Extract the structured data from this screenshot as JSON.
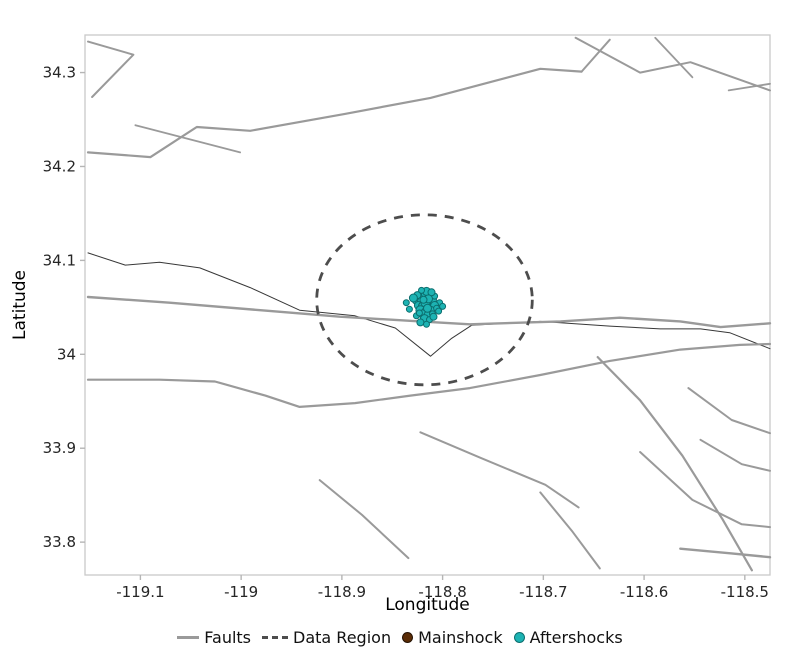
{
  "figure": {
    "title": ""
  },
  "legend": {
    "items": [
      {
        "label": "Faults",
        "type": "line",
        "color": "#9a9a9a"
      },
      {
        "label": "Data Region",
        "type": "dashed",
        "color": "#4d4d4d"
      },
      {
        "label": "Mainshock",
        "type": "point",
        "color": "#5a2c06",
        "edge": "#241103"
      },
      {
        "label": "Aftershocks",
        "type": "point",
        "color": "#1db3b3",
        "edge": "#0b6e6e"
      }
    ]
  },
  "chart_data": {
    "type": "scatter",
    "title": "",
    "xlabel": "Longitude",
    "ylabel": "Latitude",
    "xlim": [
      -119.155,
      -118.475
    ],
    "ylim": [
      33.765,
      34.34
    ],
    "x_ticks": [
      -119.1,
      -119.0,
      -118.9,
      -118.8,
      -118.7,
      -118.6,
      -118.5
    ],
    "x_tick_labels": [
      "-119.1",
      "-119",
      "-118.9",
      "-118.8",
      "-118.7",
      "-118.6",
      "-118.5"
    ],
    "y_ticks": [
      33.8,
      33.9,
      34.0,
      34.1,
      34.2,
      34.3
    ],
    "y_tick_labels": [
      "33.8",
      "33.9",
      "34",
      "34.1",
      "34.2",
      "34.3"
    ],
    "grid": false,
    "legend_position": "bottom",
    "colors": {
      "fault": "#9a9a9a",
      "fault_dark": "#383838",
      "data_region": "#4d4d4d",
      "mainshock": "#5a2c06",
      "mainshock_edge": "#241103",
      "aftershock": "#1db3b3",
      "aftershock_edge": "#0b6e6e",
      "panel_border": "#c9c9c9",
      "tick": "#b5b5b5",
      "tick_label": "#262626"
    },
    "data_region": {
      "center": [
        -118.818,
        34.058
      ],
      "rx": 0.107,
      "ry": 0.0905
    },
    "mainshock": {
      "lon": -118.818,
      "lat": 34.053
    },
    "aftershocks": [
      [
        -118.822,
        34.061,
        4
      ],
      [
        -118.818,
        34.064,
        3
      ],
      [
        -118.813,
        34.06,
        4.5
      ],
      [
        -118.827,
        34.057,
        3
      ],
      [
        -118.82,
        34.056,
        5
      ],
      [
        -118.815,
        34.056,
        3.5
      ],
      [
        -118.81,
        34.058,
        4
      ],
      [
        -118.803,
        34.055,
        3
      ],
      [
        -118.824,
        34.052,
        4
      ],
      [
        -118.819,
        34.051,
        5
      ],
      [
        -118.814,
        34.051,
        3
      ],
      [
        -118.808,
        34.052,
        4
      ],
      [
        -118.833,
        34.048,
        3
      ],
      [
        -118.822,
        34.047,
        4.5
      ],
      [
        -118.817,
        34.047,
        3
      ],
      [
        -118.812,
        34.047,
        4
      ],
      [
        -118.806,
        34.049,
        3
      ],
      [
        -118.82,
        34.043,
        4
      ],
      [
        -118.815,
        34.042,
        3.5
      ],
      [
        -118.81,
        34.043,
        3
      ],
      [
        -118.826,
        34.041,
        3
      ],
      [
        -118.818,
        34.038,
        4
      ],
      [
        -118.813,
        34.037,
        3
      ],
      [
        -118.822,
        34.034,
        3.5
      ],
      [
        -118.816,
        34.032,
        3
      ],
      [
        -118.836,
        34.055,
        3
      ],
      [
        -118.8,
        34.051,
        3
      ],
      [
        -118.825,
        34.063,
        3.5
      ],
      [
        -118.808,
        34.062,
        3
      ],
      [
        -118.816,
        34.067,
        4
      ],
      [
        -118.821,
        34.068,
        3
      ],
      [
        -118.811,
        34.066,
        3.5
      ],
      [
        -118.829,
        34.06,
        4
      ],
      [
        -118.804,
        34.046,
        3
      ],
      [
        -118.817,
        34.055,
        4.5
      ],
      [
        -118.814,
        34.059,
        4
      ],
      [
        -118.819,
        34.058,
        3.5
      ],
      [
        -118.823,
        34.044,
        3
      ],
      [
        -118.809,
        34.04,
        3.5
      ],
      [
        -118.815,
        34.049,
        4
      ]
    ],
    "faults": [
      {
        "width": 2,
        "points": [
          [
            -119.152,
            34.333
          ],
          [
            -119.107,
            34.319
          ],
          [
            -119.148,
            34.274
          ]
        ]
      },
      {
        "width": 2.2,
        "points": [
          [
            -119.152,
            34.215
          ],
          [
            -119.09,
            34.21
          ],
          [
            -119.044,
            34.242
          ],
          [
            -118.991,
            34.238
          ],
          [
            -118.897,
            34.256
          ],
          [
            -118.812,
            34.273
          ],
          [
            -118.703,
            34.304
          ],
          [
            -118.662,
            34.301
          ]
        ]
      },
      {
        "width": 1.8,
        "points": [
          [
            -119.105,
            34.244
          ],
          [
            -119.001,
            34.215
          ]
        ]
      },
      {
        "width": 2,
        "points": [
          [
            -118.662,
            34.301
          ],
          [
            -118.634,
            34.335
          ]
        ]
      },
      {
        "width": 2,
        "points": [
          [
            -118.668,
            34.337
          ],
          [
            -118.604,
            34.3
          ],
          [
            -118.554,
            34.311
          ],
          [
            -118.475,
            34.281
          ]
        ]
      },
      {
        "width": 1.8,
        "points": [
          [
            -118.589,
            34.337
          ],
          [
            -118.552,
            34.295
          ]
        ]
      },
      {
        "width": 1.8,
        "points": [
          [
            -118.516,
            34.281
          ],
          [
            -118.475,
            34.288
          ]
        ]
      },
      {
        "width": 1,
        "dark": true,
        "points": [
          [
            -119.152,
            34.108
          ],
          [
            -119.115,
            34.095
          ],
          [
            -119.081,
            34.098
          ],
          [
            -119.041,
            34.092
          ],
          [
            -118.991,
            34.071
          ],
          [
            -118.942,
            34.047
          ],
          [
            -118.887,
            34.041
          ],
          [
            -118.847,
            34.028
          ],
          [
            -118.812,
            33.998
          ],
          [
            -118.791,
            34.017
          ],
          [
            -118.771,
            34.031
          ],
          [
            -118.703,
            34.035
          ],
          [
            -118.634,
            34.03
          ],
          [
            -118.584,
            34.027
          ],
          [
            -118.544,
            34.027
          ],
          [
            -118.515,
            34.023
          ],
          [
            -118.475,
            34.006
          ]
        ]
      },
      {
        "width": 2.4,
        "points": [
          [
            -119.152,
            34.061
          ],
          [
            -119.071,
            34.055
          ],
          [
            -118.981,
            34.047
          ],
          [
            -118.902,
            34.04
          ],
          [
            -118.822,
            34.035
          ],
          [
            -118.773,
            34.032
          ],
          [
            -118.683,
            34.035
          ],
          [
            -118.624,
            34.039
          ],
          [
            -118.564,
            34.035
          ],
          [
            -118.524,
            34.029
          ],
          [
            -118.475,
            34.033
          ]
        ]
      },
      {
        "width": 2.2,
        "points": [
          [
            -119.152,
            33.973
          ],
          [
            -119.081,
            33.973
          ],
          [
            -119.026,
            33.971
          ],
          [
            -118.976,
            33.956
          ],
          [
            -118.942,
            33.944
          ],
          [
            -118.887,
            33.948
          ],
          [
            -118.832,
            33.956
          ],
          [
            -118.773,
            33.964
          ],
          [
            -118.703,
            33.978
          ],
          [
            -118.634,
            33.993
          ],
          [
            -118.564,
            34.005
          ],
          [
            -118.505,
            34.01
          ],
          [
            -118.475,
            34.011
          ]
        ]
      },
      {
        "width": 2.2,
        "points": [
          [
            -118.646,
            33.997
          ],
          [
            -118.604,
            33.951
          ],
          [
            -118.562,
            33.892
          ],
          [
            -118.522,
            33.824
          ],
          [
            -118.493,
            33.77
          ]
        ]
      },
      {
        "width": 2,
        "points": [
          [
            -118.822,
            33.917
          ],
          [
            -118.763,
            33.89
          ],
          [
            -118.698,
            33.861
          ],
          [
            -118.665,
            33.837
          ]
        ]
      },
      {
        "width": 2,
        "points": [
          [
            -118.922,
            33.866
          ],
          [
            -118.88,
            33.829
          ],
          [
            -118.834,
            33.783
          ]
        ]
      },
      {
        "width": 2,
        "points": [
          [
            -118.703,
            33.853
          ],
          [
            -118.671,
            33.811
          ],
          [
            -118.644,
            33.772
          ]
        ]
      },
      {
        "width": 2,
        "points": [
          [
            -118.556,
            33.964
          ],
          [
            -118.513,
            33.93
          ],
          [
            -118.475,
            33.916
          ]
        ]
      },
      {
        "width": 2,
        "points": [
          [
            -118.544,
            33.909
          ],
          [
            -118.503,
            33.883
          ],
          [
            -118.475,
            33.876
          ]
        ]
      },
      {
        "width": 2,
        "points": [
          [
            -118.604,
            33.896
          ],
          [
            -118.552,
            33.845
          ],
          [
            -118.503,
            33.819
          ],
          [
            -118.475,
            33.816
          ]
        ]
      },
      {
        "width": 2.4,
        "points": [
          [
            -118.564,
            33.793
          ],
          [
            -118.513,
            33.788
          ],
          [
            -118.475,
            33.784
          ]
        ]
      }
    ]
  }
}
